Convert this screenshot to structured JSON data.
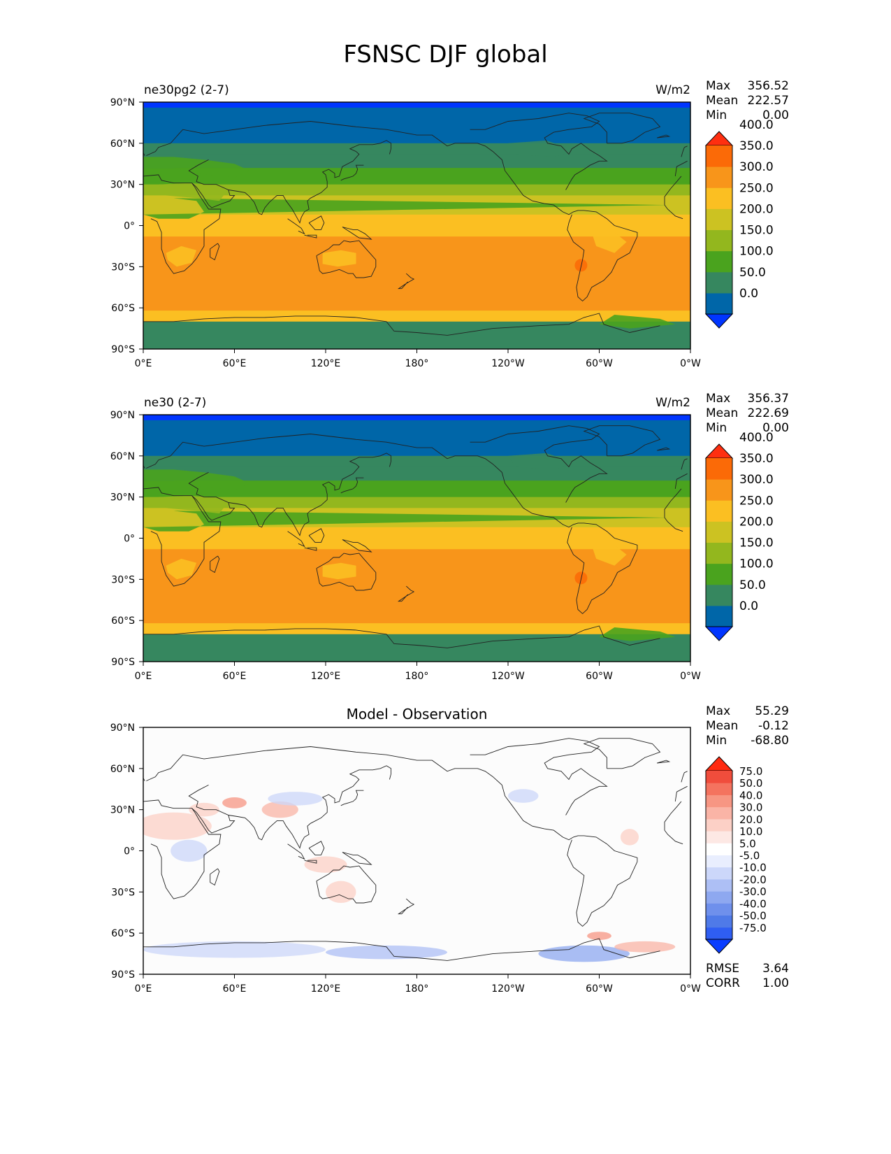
{
  "title": "FSNSC DJF global",
  "panels": [
    {
      "label": "ne30pg2 (2-7)",
      "units": "W/m2",
      "center_title": "",
      "stats": [
        {
          "k": "Max",
          "v": "356.52"
        },
        {
          "k": "Mean",
          "v": "222.57"
        },
        {
          "k": "Min",
          "v": "0.00"
        }
      ],
      "colorbar": {
        "colors": [
          "#0035ff",
          "#0066a8",
          "#36875f",
          "#4aa31e",
          "#93b71e",
          "#ccc222",
          "#fbbf22",
          "#f8951a",
          "#fb6a07",
          "#ff2f10"
        ],
        "labels": [
          "0.0",
          "50.0",
          "100.0",
          "150.0",
          "200.0",
          "250.0",
          "300.0",
          "350.0",
          "400.0"
        ]
      },
      "footer": []
    },
    {
      "label": "ne30 (2-7)",
      "units": "W/m2",
      "center_title": "",
      "stats": [
        {
          "k": "Max",
          "v": "356.37"
        },
        {
          "k": "Mean",
          "v": "222.69"
        },
        {
          "k": "Min",
          "v": "0.00"
        }
      ],
      "colorbar": {
        "colors": [
          "#0035ff",
          "#0066a8",
          "#36875f",
          "#4aa31e",
          "#93b71e",
          "#ccc222",
          "#fbbf22",
          "#f8951a",
          "#fb6a07",
          "#ff2f10"
        ],
        "labels": [
          "0.0",
          "50.0",
          "100.0",
          "150.0",
          "200.0",
          "250.0",
          "300.0",
          "350.0",
          "400.0"
        ]
      },
      "footer": []
    },
    {
      "label": "",
      "units": "",
      "center_title": "Model - Observation",
      "stats": [
        {
          "k": "Max",
          "v": "55.29"
        },
        {
          "k": "Mean",
          "v": "-0.12"
        },
        {
          "k": "Min",
          "v": "-68.80"
        }
      ],
      "colorbar": {
        "colors": [
          "#0a3dff",
          "#2f5ef2",
          "#4f7ae8",
          "#6f90ec",
          "#8ea8f0",
          "#adbff5",
          "#ccd7fa",
          "#e9eefe",
          "#ffffff",
          "#fde8e4",
          "#fcd0c6",
          "#fab4a6",
          "#f79683",
          "#f4735f",
          "#f04d3c",
          "#ff2a10"
        ],
        "labels": [
          "-75.0",
          "-50.0",
          "-40.0",
          "-30.0",
          "-20.0",
          "-10.0",
          "-5.0",
          "5.0",
          "10.0",
          "20.0",
          "30.0",
          "40.0",
          "50.0",
          "75.0"
        ]
      },
      "footer": [
        {
          "k": "RMSE",
          "v": "3.64"
        },
        {
          "k": "CORR",
          "v": "1.00"
        }
      ]
    }
  ],
  "axes": {
    "xticks": [
      "0°E",
      "60°E",
      "120°E",
      "180°",
      "120°W",
      "60°W",
      "0°W"
    ],
    "yticks": [
      "90°N",
      "60°N",
      "30°N",
      "0°",
      "30°S",
      "60°S",
      "90°S"
    ]
  }
}
